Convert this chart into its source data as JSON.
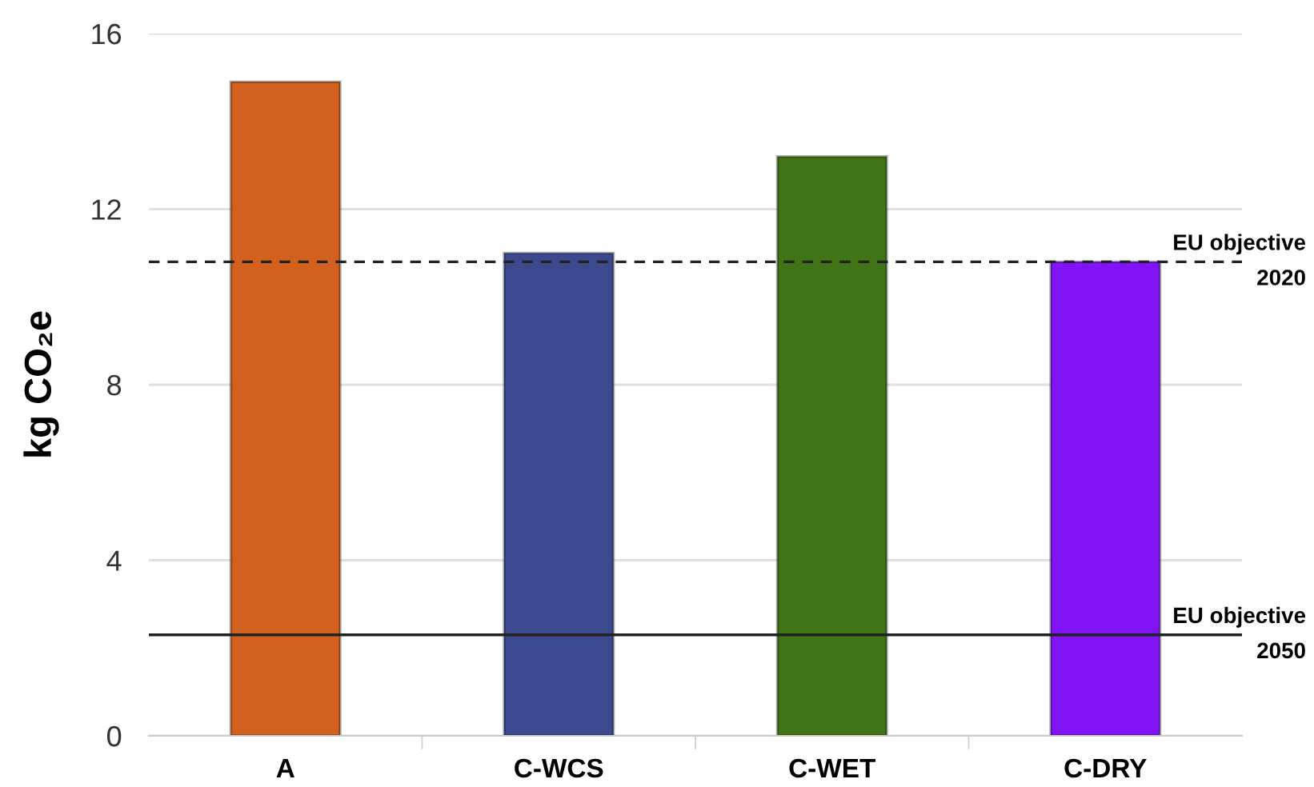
{
  "chart_data": {
    "type": "bar",
    "ylabel": "kg CO₂e",
    "categories": [
      "A",
      "C-WCS",
      "C-WET",
      "C-DRY"
    ],
    "values": [
      14.9,
      11.0,
      13.2,
      10.8
    ],
    "colors": [
      "#d2601f",
      "#3b4a8e",
      "#3f7417",
      "#8014f5"
    ],
    "ylim": [
      0,
      16
    ],
    "yticks": [
      0,
      4,
      8,
      12,
      16
    ],
    "grid": "y",
    "ref_lines": [
      {
        "axis": "y",
        "value": 10.8,
        "label": "EU objective\n2020",
        "line_style": "dashed",
        "color": "#222222"
      },
      {
        "axis": "y",
        "value": 2.3,
        "label": "EU objective\n2050",
        "line_style": "solid",
        "color": "#222222"
      }
    ]
  }
}
